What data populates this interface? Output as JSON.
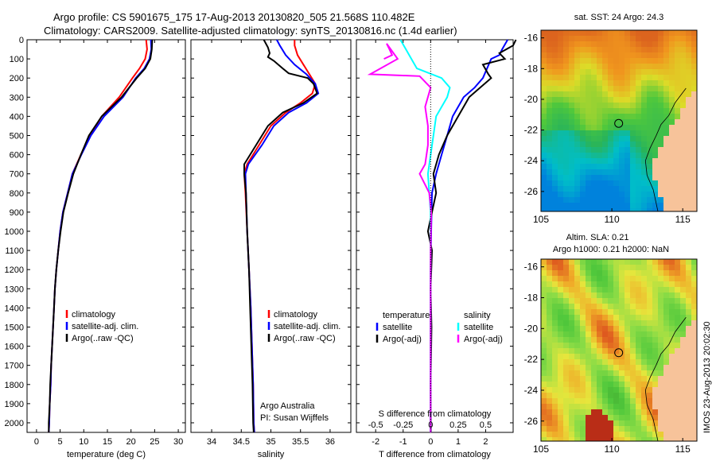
{
  "header": {
    "line1": "Argo profile: CS 5901675_175 17-Aug-2013 20130820_505 21.568S 110.482E",
    "line2": "Climatology: CARS2009. Satellite-adjusted climatology: synTS_20130816.nc (1.4d earlier)"
  },
  "side_label": "IMOS 23-Aug-2013 20:02:30",
  "chart_data": [
    {
      "type": "line",
      "name": "temperature-profile",
      "xlabel": "temperature (deg C)",
      "ylabel": "",
      "xlim": [
        -2,
        31.5
      ],
      "ylim": [
        2050,
        0
      ],
      "xticks": [
        0,
        5,
        10,
        15,
        20,
        25,
        30
      ],
      "yticks": [
        0,
        100,
        200,
        300,
        400,
        500,
        600,
        700,
        800,
        900,
        1000,
        1100,
        1200,
        1300,
        1400,
        1500,
        1600,
        1700,
        1800,
        1900,
        2000
      ],
      "legend": [
        "climatology",
        "satellite-adj. clim.",
        "Argo(..raw -QC)"
      ],
      "legend_position": "lower-center",
      "series": [
        {
          "name": "climatology",
          "color": "#ff0000",
          "points": [
            [
              23.2,
              0
            ],
            [
              23.4,
              50
            ],
            [
              23.0,
              100
            ],
            [
              21.8,
              150
            ],
            [
              20.3,
              200
            ],
            [
              17.5,
              300
            ],
            [
              13.8,
              400
            ],
            [
              11.3,
              500
            ],
            [
              9.4,
              600
            ],
            [
              7.6,
              700
            ],
            [
              6.6,
              800
            ],
            [
              5.6,
              900
            ],
            [
              5.0,
              1000
            ],
            [
              4.6,
              1100
            ],
            [
              4.2,
              1200
            ],
            [
              3.9,
              1300
            ],
            [
              3.7,
              1400
            ],
            [
              3.5,
              1500
            ],
            [
              3.3,
              1600
            ],
            [
              3.1,
              1700
            ],
            [
              3.0,
              1800
            ],
            [
              2.8,
              1900
            ],
            [
              2.7,
              2000
            ],
            [
              2.6,
              2050
            ]
          ]
        },
        {
          "name": "satellite-adj. clim.",
          "color": "#0000ff",
          "points": [
            [
              24.2,
              0
            ],
            [
              24.3,
              50
            ],
            [
              23.9,
              100
            ],
            [
              22.8,
              150
            ],
            [
              21.0,
              200
            ],
            [
              18.3,
              300
            ],
            [
              14.3,
              400
            ],
            [
              11.5,
              500
            ],
            [
              9.5,
              600
            ],
            [
              7.6,
              700
            ],
            [
              6.6,
              800
            ],
            [
              5.6,
              900
            ],
            [
              5.0,
              1000
            ],
            [
              4.6,
              1100
            ],
            [
              4.2,
              1200
            ],
            [
              3.9,
              1300
            ],
            [
              3.7,
              1400
            ],
            [
              3.5,
              1500
            ],
            [
              3.3,
              1600
            ],
            [
              3.1,
              1700
            ],
            [
              3.0,
              1800
            ],
            [
              2.8,
              1900
            ],
            [
              2.7,
              2000
            ],
            [
              2.6,
              2050
            ]
          ]
        },
        {
          "name": "Argo(..raw -QC)",
          "color": "#000000",
          "points": [
            [
              24.5,
              0
            ],
            [
              24.4,
              50
            ],
            [
              24.1,
              100
            ],
            [
              23.0,
              150
            ],
            [
              21.2,
              200
            ],
            [
              18.0,
              300
            ],
            [
              13.8,
              400
            ],
            [
              11.1,
              500
            ],
            [
              9.4,
              600
            ],
            [
              7.8,
              700
            ],
            [
              6.7,
              800
            ],
            [
              5.7,
              900
            ],
            [
              5.1,
              1000
            ],
            [
              4.6,
              1100
            ],
            [
              4.2,
              1200
            ],
            [
              3.9,
              1300
            ],
            [
              3.7,
              1400
            ],
            [
              3.5,
              1500
            ],
            [
              3.3,
              1600
            ],
            [
              3.1,
              1700
            ],
            [
              2.9,
              1800
            ],
            [
              2.8,
              1900
            ],
            [
              2.6,
              2000
            ],
            [
              2.6,
              2050
            ]
          ]
        }
      ]
    },
    {
      "type": "line",
      "name": "salinity-profile",
      "xlabel": "salinity",
      "ylabel": "",
      "xlim": [
        33.65,
        36.35
      ],
      "ylim": [
        2050,
        0
      ],
      "xticks": [
        34,
        34.5,
        35,
        35.5,
        36
      ],
      "legend": [
        "climatology",
        "satellite-adj. clim.",
        "Argo(..raw -QC)"
      ],
      "legend_position": "lower-right",
      "annotations": [
        "Argo Australia",
        "PI: Susan Wijffels"
      ],
      "series": [
        {
          "name": "climatology",
          "color": "#ff0000",
          "points": [
            [
              35.4,
              0
            ],
            [
              35.4,
              30
            ],
            [
              35.45,
              80
            ],
            [
              35.55,
              130
            ],
            [
              35.65,
              180
            ],
            [
              35.75,
              230
            ],
            [
              35.7,
              280
            ],
            [
              35.5,
              330
            ],
            [
              35.25,
              380
            ],
            [
              35.0,
              450
            ],
            [
              34.8,
              550
            ],
            [
              34.6,
              650
            ],
            [
              34.55,
              700
            ],
            [
              34.57,
              800
            ],
            [
              34.6,
              1000
            ],
            [
              34.63,
              1200
            ],
            [
              34.66,
              1400
            ],
            [
              34.68,
              1600
            ],
            [
              34.7,
              1800
            ],
            [
              34.71,
              2000
            ],
            [
              34.72,
              2050
            ]
          ]
        },
        {
          "name": "satellite-adj. clim.",
          "color": "#0000ff",
          "points": [
            [
              35.1,
              0
            ],
            [
              35.15,
              30
            ],
            [
              35.25,
              80
            ],
            [
              35.4,
              130
            ],
            [
              35.6,
              180
            ],
            [
              35.75,
              230
            ],
            [
              35.8,
              280
            ],
            [
              35.6,
              330
            ],
            [
              35.3,
              380
            ],
            [
              35.05,
              450
            ],
            [
              34.85,
              550
            ],
            [
              34.62,
              650
            ],
            [
              34.57,
              700
            ],
            [
              34.58,
              800
            ],
            [
              34.6,
              1000
            ],
            [
              34.63,
              1200
            ],
            [
              34.66,
              1400
            ],
            [
              34.68,
              1600
            ],
            [
              34.7,
              1800
            ],
            [
              34.71,
              2000
            ],
            [
              34.72,
              2050
            ]
          ]
        },
        {
          "name": "Argo(..raw -QC)",
          "color": "#000000",
          "points": [
            [
              34.88,
              0
            ],
            [
              34.95,
              40
            ],
            [
              34.98,
              70
            ],
            [
              34.95,
              90
            ],
            [
              35.05,
              110
            ],
            [
              35.2,
              150
            ],
            [
              35.3,
              175
            ],
            [
              35.62,
              200
            ],
            [
              35.72,
              230
            ],
            [
              35.78,
              280
            ],
            [
              35.55,
              330
            ],
            [
              35.2,
              380
            ],
            [
              34.95,
              450
            ],
            [
              34.75,
              550
            ],
            [
              34.55,
              650
            ],
            [
              34.55,
              700
            ],
            [
              34.58,
              800
            ],
            [
              34.6,
              1000
            ],
            [
              34.63,
              1200
            ],
            [
              34.65,
              1400
            ],
            [
              34.67,
              1600
            ],
            [
              34.69,
              1800
            ],
            [
              34.7,
              2000
            ],
            [
              34.71,
              2050
            ]
          ]
        }
      ]
    },
    {
      "type": "line",
      "name": "difference-profile",
      "xlabel": "T difference from climatology",
      "xlabel_top": "S difference from climatology",
      "xlim": [
        -2.7,
        3.0
      ],
      "ylim": [
        2050,
        0
      ],
      "xticks_T": [
        -2,
        -1,
        0,
        1,
        2
      ],
      "xticks_S_labels": [
        "-0.5",
        "-0.25",
        "0",
        "0.25",
        "0.5"
      ],
      "legend_groups": [
        {
          "title": "temperature",
          "items": [
            "satellite",
            "Argo(-adj)"
          ]
        },
        {
          "title": "salinity",
          "items": [
            "satellite",
            "Argo(-adj)"
          ]
        }
      ],
      "series": [
        {
          "name": "temperature satellite",
          "color": "#0000ff",
          "points": [
            [
              2.8,
              0
            ],
            [
              2.6,
              50
            ],
            [
              2.5,
              80
            ],
            [
              2.2,
              100
            ],
            [
              1.9,
              200
            ],
            [
              1.6,
              250
            ],
            [
              1.2,
              300
            ],
            [
              0.8,
              400
            ],
            [
              0.6,
              500
            ],
            [
              0.4,
              600
            ],
            [
              0.2,
              700
            ],
            [
              0.05,
              800
            ],
            [
              0.02,
              1000
            ],
            [
              0,
              1200
            ],
            [
              0,
              1500
            ],
            [
              0,
              1800
            ],
            [
              0,
              2050
            ]
          ]
        },
        {
          "name": "temperature Argo(-adj)",
          "color": "#000000",
          "points": [
            [
              3.1,
              0
            ],
            [
              3.0,
              30
            ],
            [
              2.5,
              70
            ],
            [
              2.7,
              100
            ],
            [
              1.9,
              130
            ],
            [
              2.1,
              180
            ],
            [
              2.2,
              200
            ],
            [
              1.8,
              250
            ],
            [
              1.4,
              300
            ],
            [
              1.0,
              400
            ],
            [
              0.6,
              500
            ],
            [
              0.3,
              600
            ],
            [
              0.1,
              700
            ],
            [
              0.2,
              800
            ],
            [
              0.05,
              900
            ],
            [
              -0.1,
              1000
            ],
            [
              0.05,
              1100
            ],
            [
              0,
              1300
            ],
            [
              0.03,
              1500
            ],
            [
              0,
              1800
            ],
            [
              0.01,
              2050
            ]
          ]
        },
        {
          "name": "salinity satellite",
          "color": "#00ffff",
          "points": [
            [
              -1.1,
              0
            ],
            [
              -0.9,
              50
            ],
            [
              -0.7,
              100
            ],
            [
              -0.5,
              150
            ],
            [
              0.4,
              200
            ],
            [
              0.7,
              250
            ],
            [
              0.6,
              300
            ],
            [
              0.2,
              400
            ],
            [
              0.1,
              500
            ],
            [
              -0.1,
              700
            ],
            [
              -0.05,
              800
            ],
            [
              0,
              900
            ],
            [
              0,
              1200
            ],
            [
              0,
              1500
            ],
            [
              0,
              1800
            ],
            [
              0,
              2050
            ]
          ]
        },
        {
          "name": "salinity Argo(-adj)",
          "color": "#ff00ff",
          "points": [
            [
              -1.7,
              100
            ],
            [
              -1.4,
              80
            ],
            [
              -1.5,
              50
            ],
            [
              -1.6,
              20
            ],
            [
              -1.2,
              100
            ],
            [
              -2.2,
              180
            ],
            [
              -0.4,
              190
            ],
            [
              0.0,
              250
            ],
            [
              -0.2,
              350
            ],
            [
              -0.1,
              450
            ],
            [
              -0.1,
              550
            ],
            [
              -0.2,
              650
            ],
            [
              -0.4,
              700
            ],
            [
              -0.05,
              800
            ],
            [
              0.02,
              900
            ],
            [
              0.0,
              1100
            ],
            [
              0.0,
              1400
            ],
            [
              0.0,
              1700
            ],
            [
              0.0,
              2050
            ]
          ]
        }
      ]
    },
    {
      "type": "heatmap",
      "name": "sst-map",
      "title": "sat. SST: 24  Argo: 24.3",
      "xlim": [
        105,
        116
      ],
      "ylim": [
        -27.3,
        -15.5
      ],
      "xticks": [
        105,
        110,
        115
      ],
      "yticks": [
        -16,
        -18,
        -20,
        -22,
        -24,
        -26
      ],
      "marker": {
        "lon": 110.482,
        "lat": -21.568
      }
    },
    {
      "type": "heatmap",
      "name": "sla-map",
      "title": "Altim. SLA: 0.21",
      "subtitle": "Argo h1000: 0.21  h2000: NaN",
      "xlim": [
        105,
        116
      ],
      "ylim": [
        -27.3,
        -15.5
      ],
      "xticks": [
        105,
        110,
        115
      ],
      "yticks": [
        -16,
        -18,
        -20,
        -22,
        -24,
        -26
      ],
      "marker": {
        "lon": 110.482,
        "lat": -21.568
      }
    }
  ]
}
